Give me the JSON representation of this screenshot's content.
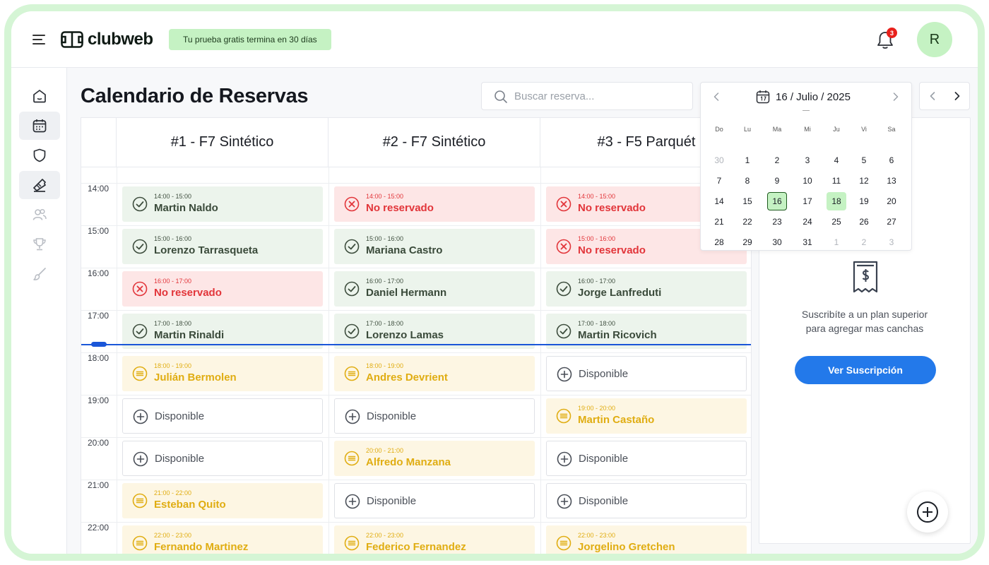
{
  "app": {
    "logo_text": "clubweb",
    "trial_badge": "Tu prueba gratis termina en 30 días",
    "notifications_count": "3",
    "avatar_initial": "R"
  },
  "sidebar": {
    "items": [
      "home-icon",
      "calendar-icon",
      "shield-icon",
      "ticket-icon",
      "users-icon",
      "trophy-icon",
      "brush-icon"
    ],
    "active": "calendar-icon"
  },
  "page": {
    "title": "Calendario de Reservas"
  },
  "search": {
    "placeholder": "Buscar reserva..."
  },
  "calendar": {
    "title": "16 / Julio / 2025",
    "weekdays": [
      "Do",
      "Lu",
      "Ma",
      "Mi",
      "Ju",
      "Vi",
      "Sa"
    ],
    "weeks": [
      [
        "30",
        "1",
        "2",
        "3",
        "4",
        "5",
        "6"
      ],
      [
        "7",
        "8",
        "9",
        "10",
        "11",
        "12",
        "13"
      ],
      [
        "14",
        "15",
        "16",
        "17",
        "18",
        "19",
        "20"
      ],
      [
        "21",
        "22",
        "23",
        "24",
        "25",
        "26",
        "27"
      ],
      [
        "28",
        "29",
        "30",
        "31",
        "1",
        "2",
        "3"
      ]
    ],
    "selected_day": "16",
    "highlighted_day": "18"
  },
  "courts": [
    "#1 - F7 Sintético",
    "#2 - F7 Sintético",
    "#3 - F5 Parquét"
  ],
  "times": [
    "14:00",
    "15:00",
    "16:00",
    "17:00",
    "18:00",
    "19:00",
    "20:00",
    "21:00",
    "22:00"
  ],
  "slots": [
    [
      {
        "status": "reserved",
        "time": "14:00 - 15:00",
        "name": "Martin Naldo"
      },
      {
        "status": "reserved",
        "time": "15:00 - 16:00",
        "name": "Lorenzo Tarrasqueta"
      },
      {
        "status": "none",
        "time": "16:00 - 17:00",
        "name": "No reservado"
      },
      {
        "status": "reserved",
        "time": "17:00 - 18:00",
        "name": "Martin Rinaldi"
      },
      {
        "status": "pending",
        "time": "18:00 - 19:00",
        "name": "Julián Bermolen"
      },
      {
        "status": "free",
        "name": "Disponible"
      },
      {
        "status": "free",
        "name": "Disponible"
      },
      {
        "status": "pending",
        "time": "21:00 - 22:00",
        "name": "Esteban Quito"
      },
      {
        "status": "pending",
        "time": "22:00 - 23:00",
        "name": "Fernando Martinez"
      }
    ],
    [
      {
        "status": "none",
        "time": "14:00 - 15:00",
        "name": "No reservado"
      },
      {
        "status": "reserved",
        "time": "15:00 - 16:00",
        "name": "Mariana Castro"
      },
      {
        "status": "reserved",
        "time": "16:00 - 17:00",
        "name": "Daniel Hermann"
      },
      {
        "status": "reserved",
        "time": "17:00 - 18:00",
        "name": "Lorenzo Lamas"
      },
      {
        "status": "pending",
        "time": "18:00 - 19:00",
        "name": "Andres Devrient"
      },
      {
        "status": "free",
        "name": "Disponible"
      },
      {
        "status": "pending",
        "time": "20:00 - 21:00",
        "name": "Alfredo Manzana"
      },
      {
        "status": "free",
        "name": "Disponible"
      },
      {
        "status": "pending",
        "time": "22:00 - 23:00",
        "name": "Federico Fernandez"
      }
    ],
    [
      {
        "status": "none",
        "time": "14:00 - 15:00",
        "name": "No reservado"
      },
      {
        "status": "none",
        "time": "15:00 - 16:00",
        "name": "No reservado"
      },
      {
        "status": "reserved",
        "time": "16:00 - 17:00",
        "name": "Jorge Lanfreduti"
      },
      {
        "status": "reserved",
        "time": "17:00 - 18:00",
        "name": "Martin Ricovich"
      },
      {
        "status": "free",
        "name": "Disponible"
      },
      {
        "status": "pending",
        "time": "19:00 - 20:00",
        "name": "Martin Castaño"
      },
      {
        "status": "free",
        "name": "Disponible"
      },
      {
        "status": "free",
        "name": "Disponible"
      },
      {
        "status": "pending",
        "time": "22:00 - 23:00",
        "name": "Jorgelino Gretchen"
      }
    ]
  ],
  "upsell": {
    "line1": "Suscribíte a un plan superior",
    "line2": "para agregar mas canchas",
    "button": "Ver Suscripción"
  },
  "colors": {
    "brand_green": "#c5f2c3",
    "primary_blue": "#2379ea",
    "reserved": "#ecf4ec",
    "not_reserved": "#fde6e6",
    "pending": "#fdf6e3",
    "now_line": "#1a56d8"
  }
}
